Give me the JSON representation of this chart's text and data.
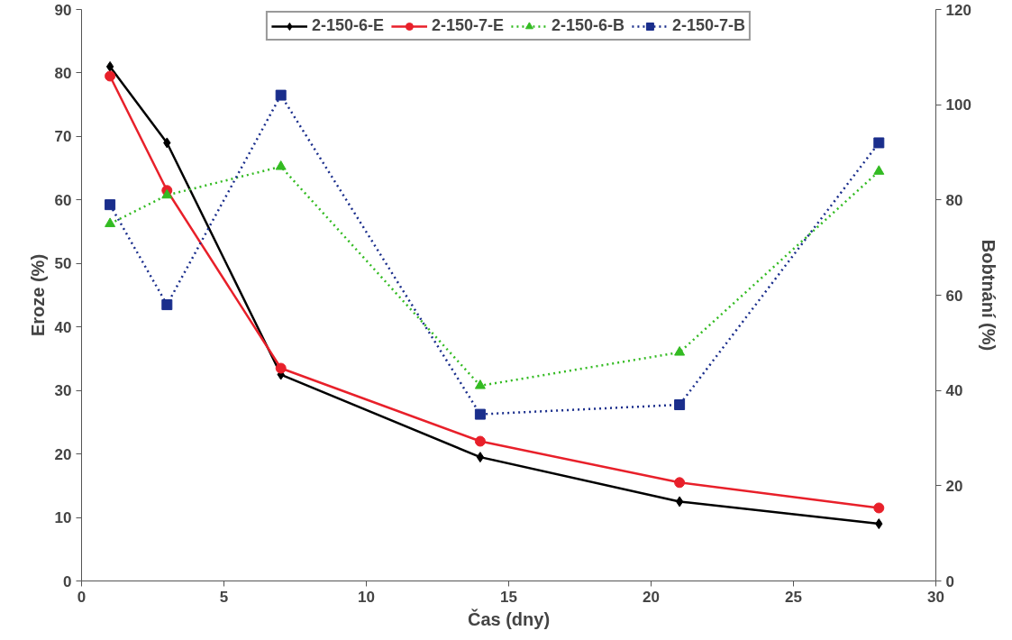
{
  "chart_data": {
    "type": "line",
    "xlabel": "Čas (dny)",
    "ylabel": "Eroze (%)",
    "y2label": "Bobtnání (%)",
    "x": [
      1,
      3,
      7,
      14,
      21,
      28
    ],
    "series": [
      {
        "name": "2-150-6-E",
        "color": "#000000",
        "marker": "diamond",
        "line_style": "solid",
        "values": [
          81,
          69,
          32.5,
          19.5,
          12.5,
          9
        ]
      },
      {
        "name": "2-150-7-E",
        "color": "#e8202a",
        "marker": "circle",
        "line_style": "solid",
        "values": [
          79.5,
          61.5,
          33.5,
          22,
          15.5,
          11.5
        ]
      },
      {
        "name": "2-150-6-B",
        "color": "#33bb22",
        "marker": "triangle",
        "line_style": "dotted",
        "axis": "y2",
        "values": [
          75,
          81,
          87,
          41,
          48,
          86
        ]
      },
      {
        "name": "2-150-7-B",
        "color": "#1a2e8c",
        "marker": "square",
        "line_style": "dotted",
        "axis": "y2",
        "values": [
          79,
          58,
          102,
          35,
          37,
          92
        ]
      }
    ],
    "xlim": [
      0,
      30
    ],
    "xticks": [
      0,
      5,
      10,
      15,
      20,
      25,
      30
    ],
    "ylim": [
      0,
      90
    ],
    "yticks": [
      0,
      10,
      20,
      30,
      40,
      50,
      60,
      70,
      80,
      90
    ],
    "y2lim": [
      0,
      120
    ],
    "y2ticks": [
      0,
      20,
      40,
      60,
      80,
      100,
      120
    ],
    "legend": "top",
    "grid": false
  }
}
